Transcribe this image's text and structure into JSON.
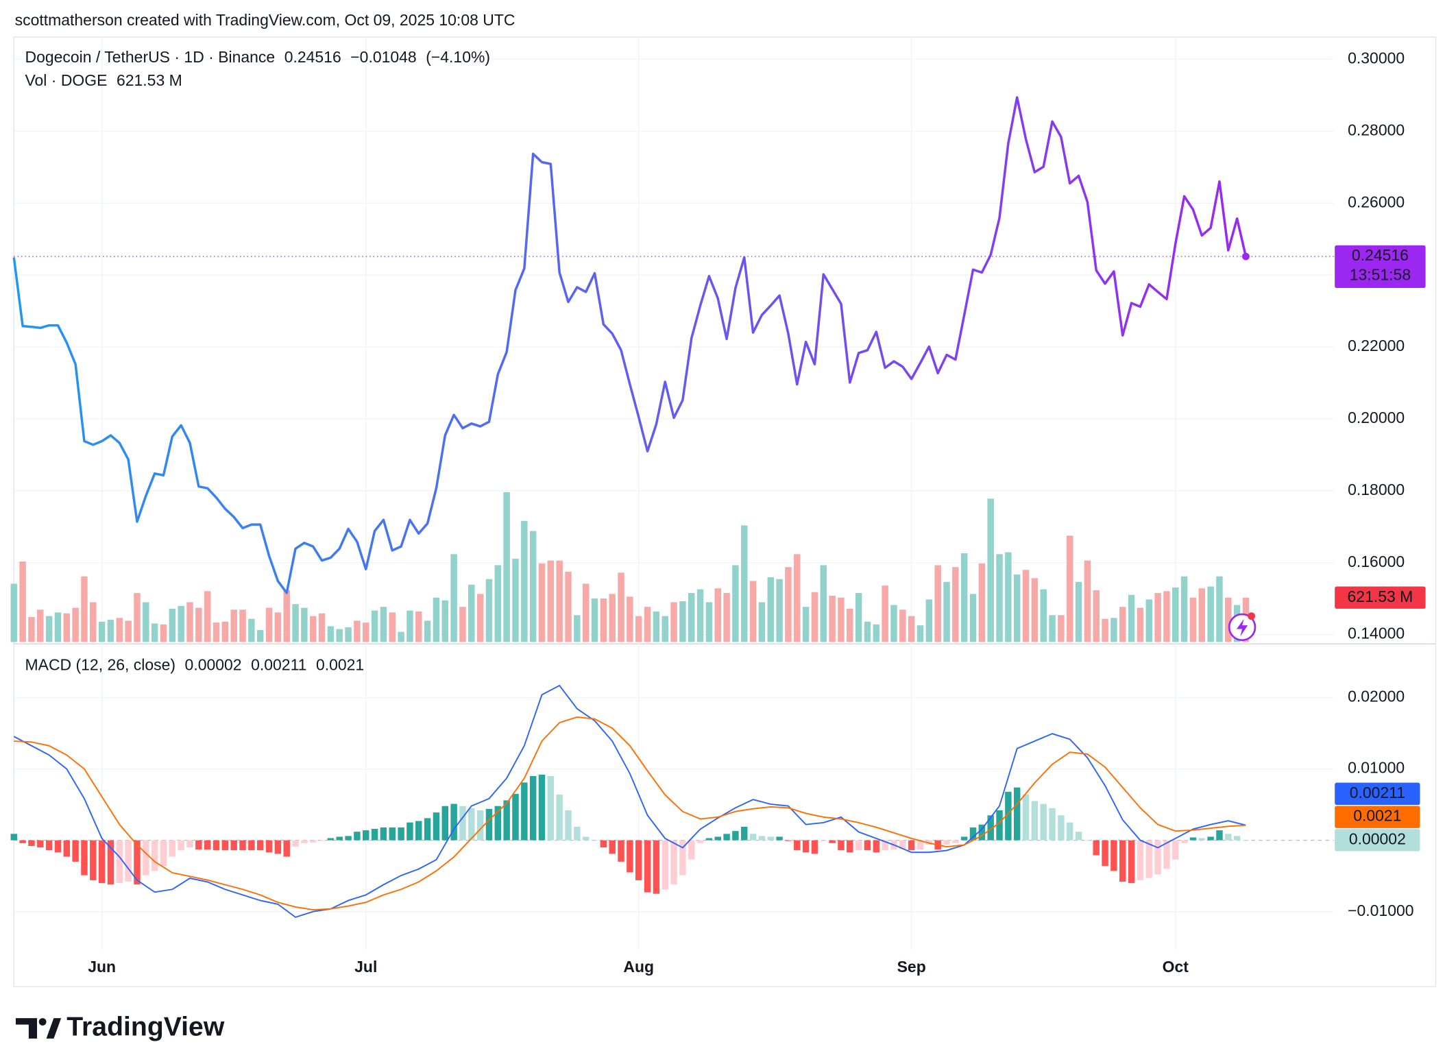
{
  "header": "scottmatherson created with TradingView.com, Oct 09, 2025 10:08 UTC",
  "footer": "TradingView",
  "chart_data": [
    {
      "type": "line",
      "xlim": [
        0,
        150
      ],
      "xticks": [
        {
          "value": 10,
          "label": "Jun"
        },
        {
          "value": 40,
          "label": "Jul"
        },
        {
          "value": 71,
          "label": "Aug"
        },
        {
          "value": 102,
          "label": "Sep"
        },
        {
          "value": 132,
          "label": "Oct"
        }
      ],
      "ylim": [
        0.13742,
        0.30618
      ],
      "yticks": [
        {
          "value": 0.14,
          "label": "0.14000"
        },
        {
          "value": 0.16,
          "label": "0.16000"
        },
        {
          "value": 0.18,
          "label": "0.18000"
        },
        {
          "value": 0.2,
          "label": "0.20000"
        },
        {
          "value": 0.22,
          "label": "0.22000"
        },
        {
          "value": 0.24,
          "label": "0.24000"
        },
        {
          "value": 0.26,
          "label": "0.26000"
        },
        {
          "value": 0.28,
          "label": "0.28000"
        },
        {
          "value": 0.3,
          "label": "0.30000"
        }
      ],
      "grid": true,
      "change": {
        "value": -0.01048,
        "label": "−0.01048"
      },
      "change_pct": {
        "value": -4.1,
        "label": "(−4.10%)"
      },
      "countdown": "13:51:58",
      "series": [
        {
          "name": "Dogecoin / TetherUS · 1D · Binance",
          "colors": [
            "#2196f3",
            "#9c27f0"
          ],
          "values": [
            0.2449,
            0.2258,
            0.2256,
            0.2253,
            0.226,
            0.226,
            0.2212,
            0.2152,
            0.1938,
            0.1928,
            0.1938,
            0.1954,
            0.1933,
            0.1887,
            0.1714,
            0.1786,
            0.1848,
            0.1843,
            0.1951,
            0.1982,
            0.1933,
            0.1812,
            0.1807,
            0.1781,
            0.175,
            0.1727,
            0.1696,
            0.1706,
            0.1706,
            0.1619,
            0.1549,
            0.1516,
            0.1639,
            0.1655,
            0.1645,
            0.1606,
            0.1614,
            0.1639,
            0.1694,
            0.1658,
            0.1582,
            0.1688,
            0.1719,
            0.1634,
            0.1645,
            0.1719,
            0.1681,
            0.1709,
            0.1807,
            0.1954,
            0.2011,
            0.1974,
            0.1987,
            0.1979,
            0.1992,
            0.2124,
            0.2186,
            0.2358,
            0.2418,
            0.2737,
            0.2714,
            0.2709,
            0.2407,
            0.2325,
            0.2366,
            0.2353,
            0.2405,
            0.2263,
            0.2237,
            0.2191,
            0.2096,
            0.2005,
            0.191,
            0.1985,
            0.2103,
            0.2003,
            0.2052,
            0.2224,
            0.2315,
            0.2397,
            0.2335,
            0.2222,
            0.2364,
            0.2449,
            0.224,
            0.2289,
            0.2315,
            0.2343,
            0.2237,
            0.2096,
            0.2214,
            0.2152,
            0.2402,
            0.2361,
            0.232,
            0.2101,
            0.2183,
            0.2191,
            0.2242,
            0.2142,
            0.216,
            0.2145,
            0.2111,
            0.2155,
            0.2201,
            0.2127,
            0.2178,
            0.2165,
            0.2289,
            0.2415,
            0.2407,
            0.2456,
            0.2559,
            0.2766,
            0.2894,
            0.2778,
            0.2686,
            0.2701,
            0.2827,
            0.2784,
            0.2655,
            0.2676,
            0.2603,
            0.2413,
            0.2376,
            0.241,
            0.2232,
            0.2322,
            0.2312,
            0.2374,
            0.2353,
            0.2333,
            0.2487,
            0.2619,
            0.2582,
            0.251,
            0.2531,
            0.266,
            0.2469,
            0.2557,
            0.24516
          ]
        },
        {
          "name": "Vol · DOGE",
          "type": "bar",
          "up_color": "#92d2cc",
          "down_color": "#f7a9a7",
          "label_color": "#f23645",
          "values": [
            816,
            1127,
            350,
            453,
            363,
            414,
            401,
            479,
            919,
            557,
            285,
            311,
            337,
            298,
            686,
            557,
            259,
            246,
            466,
            505,
            557,
            479,
            712,
            272,
            285,
            453,
            453,
            324,
            168,
            479,
            414,
            725,
            531,
            479,
            363,
            401,
            220,
            181,
            207,
            298,
            272,
            440,
            492,
            414,
            142,
            440,
            427,
            298,
            622,
            583,
            1230,
            492,
            803,
            673,
            881,
            1075,
            2098,
            1166,
            1696,
            1554,
            1101,
            1140,
            1140,
            984,
            376,
            816,
            609,
            609,
            673,
            971,
            635,
            363,
            492,
            427,
            363,
            557,
            570,
            686,
            738,
            557,
            751,
            686,
            1075,
            1632,
            855,
            557,
            907,
            881,
            1049,
            1230,
            492,
            699,
            1075,
            648,
            622,
            466,
            686,
            285,
            246,
            790,
            518,
            453,
            363,
            233,
            596,
            1075,
            842,
            1049,
            1243,
            673,
            1101,
            2007,
            1230,
            1256,
            945,
            1010,
            894,
            738,
            376,
            376,
            1489,
            842,
            1140,
            725,
            324,
            337,
            492,
            660,
            479,
            596,
            686,
            712,
            764,
            919,
            622,
            751,
            777,
            919,
            622,
            518,
            621.53
          ],
          "value_labels": [
            null,
            null,
            null,
            null,
            null,
            null,
            null,
            null,
            null,
            null,
            null,
            null,
            null,
            null,
            null,
            null,
            null,
            null,
            null,
            null,
            null,
            null,
            null,
            null,
            null,
            null,
            null,
            null,
            null,
            null,
            null,
            null,
            null,
            null,
            null,
            null,
            null,
            null,
            null,
            null,
            null,
            null,
            null,
            null,
            null,
            null,
            null,
            null,
            null,
            null,
            null,
            null,
            null,
            null,
            null,
            null,
            null,
            null,
            null,
            null,
            null,
            null,
            null,
            null,
            null,
            null,
            null,
            null,
            null,
            null,
            null,
            null,
            null,
            null,
            null,
            null,
            null,
            null,
            null,
            null,
            null,
            null,
            null,
            null,
            null,
            null,
            null,
            null,
            null,
            null,
            null,
            null,
            null,
            null,
            null,
            null,
            null,
            null,
            null,
            null,
            null,
            null,
            null,
            null,
            null,
            null,
            null,
            null,
            null,
            null,
            null,
            null,
            null,
            null,
            null,
            null,
            null,
            null,
            null,
            null,
            null,
            null,
            null,
            null,
            null,
            null,
            null,
            null,
            null,
            null,
            null,
            null,
            null,
            null,
            null,
            null,
            null,
            null,
            null,
            null,
            "621.53 M"
          ]
        }
      ]
    },
    {
      "type": "macd",
      "title": "MACD (12, 26, close)",
      "ylim": [
        -0.01532,
        0.02753
      ],
      "yticks": [
        {
          "value": -0.01,
          "label": "−0.01000"
        },
        {
          "value": 0.01,
          "label": "0.01000"
        },
        {
          "value": 0.02,
          "label": "0.02000"
        }
      ],
      "grid": true,
      "histogram": {
        "colors": [
          "#26a69a",
          "#b2dfdb",
          "#ffcdd2",
          "#ff5252"
        ],
        "values": [
          0.0009,
          -0.0004,
          -0.0008,
          -0.001,
          -0.0014,
          -0.0017,
          -0.0023,
          -0.003,
          -0.0049,
          -0.0056,
          -0.006,
          -0.0062,
          -0.006,
          -0.0058,
          -0.0062,
          -0.0049,
          -0.0043,
          -0.0036,
          -0.0023,
          -0.0014,
          -0.001,
          -0.0013,
          -0.0013,
          -0.0014,
          -0.0014,
          -0.0014,
          -0.0014,
          -0.0014,
          -0.0014,
          -0.0017,
          -0.0019,
          -0.0023,
          -0.0009,
          -0.0004,
          -0.0003,
          -0.0001,
          0.0003,
          0.0005,
          0.0006,
          0.0012,
          0.0014,
          0.0016,
          0.0018,
          0.0018,
          0.0018,
          0.0025,
          0.0027,
          0.0031,
          0.0039,
          0.0048,
          0.0051,
          0.0048,
          0.0045,
          0.0042,
          0.0044,
          0.0048,
          0.0056,
          0.0065,
          0.0081,
          0.009,
          0.0092,
          0.009,
          0.0064,
          0.0042,
          0.0019,
          0.0005,
          0,
          -0.001,
          -0.0019,
          -0.003,
          -0.0045,
          -0.0056,
          -0.0073,
          -0.0075,
          -0.0069,
          -0.0062,
          -0.0049,
          -0.0027,
          -0.0004,
          0.0003,
          0.0005,
          0.0009,
          0.0013,
          0.0019,
          0.0009,
          0.0006,
          0.0005,
          0.0005,
          -0.0001,
          -0.0014,
          -0.0017,
          -0.0019,
          -0.0001,
          -0.0004,
          -0.0014,
          -0.0017,
          -0.0014,
          -0.0014,
          -0.0017,
          -0.0014,
          -0.0013,
          -0.0012,
          -0.0014,
          -0.0013,
          -0.0006,
          -0.0013,
          -0.0006,
          -0.0004,
          0.0005,
          0.0018,
          0.0022,
          0.0035,
          0.0042,
          0.0068,
          0.0074,
          0.0064,
          0.0055,
          0.0051,
          0.0045,
          0.0035,
          0.0025,
          0.0012,
          0,
          -0.0021,
          -0.0036,
          -0.0043,
          -0.0058,
          -0.006,
          -0.0056,
          -0.0053,
          -0.0048,
          -0.004,
          -0.0027,
          -0.0004,
          0.0004,
          0.0003,
          0.0005,
          0.0014,
          0.0009,
          0.0006,
          2e-05
        ]
      },
      "macd": {
        "color": "#2962ff",
        "x": [
          0,
          2,
          4,
          6,
          8,
          10,
          12,
          14,
          16,
          18,
          20,
          22,
          24,
          26,
          28,
          30,
          32,
          34,
          36,
          38,
          40,
          42,
          44,
          46,
          48,
          50,
          52,
          54,
          56,
          58,
          60,
          62,
          64,
          66,
          68,
          70,
          72,
          74,
          76,
          78,
          80,
          82,
          84,
          86,
          88,
          90,
          92,
          94,
          96,
          98,
          100,
          102,
          104,
          106,
          108,
          110,
          112,
          114,
          116,
          118,
          120,
          122,
          124,
          126,
          128,
          130,
          132,
          134,
          136,
          138,
          140
        ],
        "values": [
          0.01455,
          0.01325,
          0.01195,
          0.01,
          0.00584,
          0.00026,
          -0.00234,
          -0.00558,
          -0.00727,
          -0.00688,
          -0.00532,
          -0.00584,
          -0.00688,
          -0.00766,
          -0.00844,
          -0.00896,
          -0.01078,
          -0.01,
          -0.00961,
          -0.00844,
          -0.00766,
          -0.00623,
          -0.00494,
          -0.00403,
          -0.00273,
          0.00156,
          0.00481,
          0.00584,
          0.0087,
          0.01325,
          0.02039,
          0.02169,
          0.01844,
          0.01675,
          0.0139,
          0.00935,
          0.00351,
          0.00026,
          -0.00104,
          0.00156,
          0.00312,
          0.00455,
          0.00571,
          0.00506,
          0.00481,
          0.00221,
          0.00247,
          0.00325,
          0.00117,
          0.00026,
          -0.00065,
          -0.00169,
          -0.00169,
          -0.00143,
          -0.00065,
          0.00156,
          0.00481,
          0.01286,
          0.0139,
          0.01494,
          0.01416,
          0.01156,
          0.00766,
          0.00286,
          0,
          -0.00104,
          0.00026,
          0.00156,
          0.00221,
          0.00273,
          0.00211
        ]
      },
      "signal": {
        "color": "#ff6d00",
        "x": [
          0,
          2,
          4,
          6,
          8,
          10,
          12,
          14,
          16,
          18,
          20,
          22,
          24,
          26,
          28,
          30,
          32,
          34,
          36,
          38,
          40,
          42,
          44,
          46,
          48,
          50,
          52,
          54,
          56,
          58,
          60,
          62,
          64,
          66,
          68,
          70,
          72,
          74,
          76,
          78,
          80,
          82,
          84,
          86,
          88,
          90,
          92,
          94,
          96,
          98,
          100,
          102,
          104,
          106,
          108,
          110,
          112,
          114,
          116,
          118,
          120,
          122,
          124,
          126,
          128,
          130,
          132,
          134,
          136,
          138,
          140
        ],
        "values": [
          0.0139,
          0.01377,
          0.01325,
          0.01195,
          0.01,
          0.0061,
          0.00221,
          -0.00065,
          -0.00299,
          -0.00455,
          -0.00506,
          -0.00558,
          -0.00623,
          -0.00688,
          -0.00766,
          -0.0087,
          -0.00935,
          -0.00974,
          -0.00961,
          -0.00922,
          -0.0087,
          -0.00766,
          -0.00688,
          -0.00584,
          -0.00429,
          -0.00234,
          0.00026,
          0.00286,
          0.00519,
          0.0087,
          0.0139,
          0.01649,
          0.01727,
          0.01701,
          0.01571,
          0.01325,
          0.00974,
          0.00636,
          0.00403,
          0.00299,
          0.00325,
          0.00403,
          0.00442,
          0.00468,
          0.00455,
          0.00377,
          0.00325,
          0.00299,
          0.00247,
          0.00182,
          0.00104,
          0.00026,
          -0.00039,
          -0.00091,
          -0.00065,
          0.00065,
          0.00247,
          0.00506,
          0.00805,
          0.01065,
          0.01234,
          0.01208,
          0.01026,
          0.0074,
          0.00455,
          0.00221,
          0.0013,
          0.00143,
          0.00169,
          0.00195,
          0.0021
        ]
      }
    }
  ]
}
